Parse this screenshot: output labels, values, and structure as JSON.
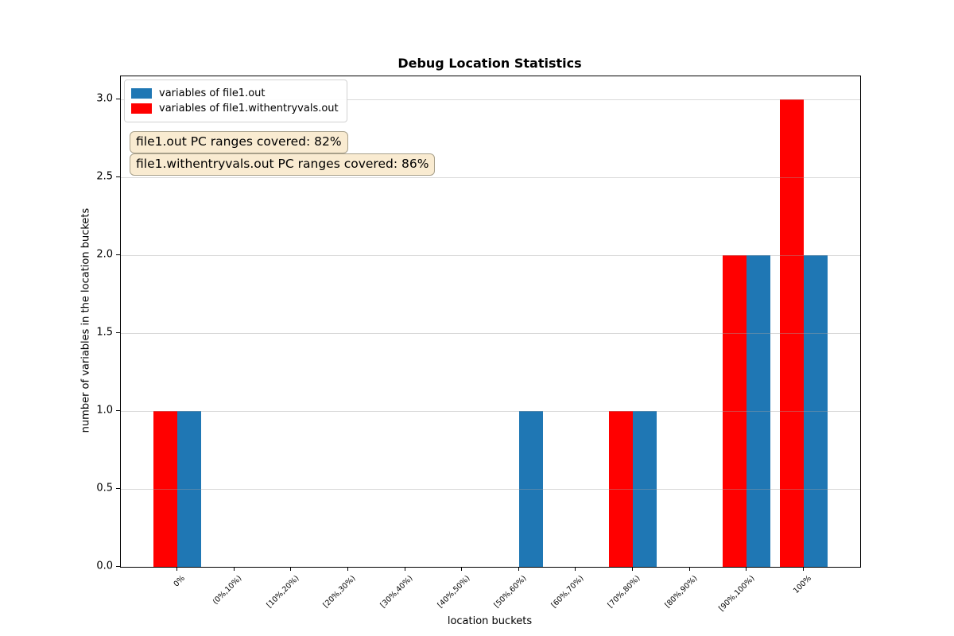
{
  "title": "Debug Location Statistics",
  "annotations": [
    "file1.out PC ranges covered: 82%",
    "file1.withentryvals.out PC ranges covered: 86%"
  ],
  "legend": {
    "items": [
      {
        "label": "variables of file1.out",
        "color": "#1f77b4"
      },
      {
        "label": "variables of file1.withentryvals.out",
        "color": "#ff0000"
      }
    ]
  },
  "colors": {
    "blue_series": "#1f77b4",
    "red_series": "#ff0000",
    "grid": "rgba(160,160,160,0.4)",
    "axis": "#000000",
    "annotation_bg": "rgba(245,222,179,0.6)",
    "annotation_border": "#a8a08a"
  },
  "chart_data": {
    "type": "bar",
    "title": "Debug Location Statistics",
    "xlabel": "location buckets",
    "ylabel": "number of variables in the location buckets",
    "categories": [
      "0%",
      "(0%,10%)",
      "[10%,20%)",
      "[20%,30%)",
      "[30%,40%)",
      "[40%,50%)",
      "[50%,60%)",
      "[60%,70%)",
      "[70%,80%)",
      "[80%,90%)",
      "[90%,100%)",
      "100%"
    ],
    "series": [
      {
        "name": "variables of file1.out",
        "color": "#1f77b4",
        "values": [
          1,
          0,
          0,
          0,
          0,
          0,
          1,
          0,
          1,
          0,
          2,
          2
        ]
      },
      {
        "name": "variables of file1.withentryvals.out",
        "color": "#ff0000",
        "values": [
          1,
          0,
          0,
          0,
          0,
          0,
          0,
          0,
          1,
          0,
          2,
          3
        ]
      }
    ],
    "yticks": [
      "0.0",
      "0.5",
      "1.0",
      "1.5",
      "2.0",
      "2.5",
      "3.0"
    ],
    "ylim": [
      0,
      3.15
    ],
    "grid": "horizontal",
    "legend_position": "upper left"
  }
}
